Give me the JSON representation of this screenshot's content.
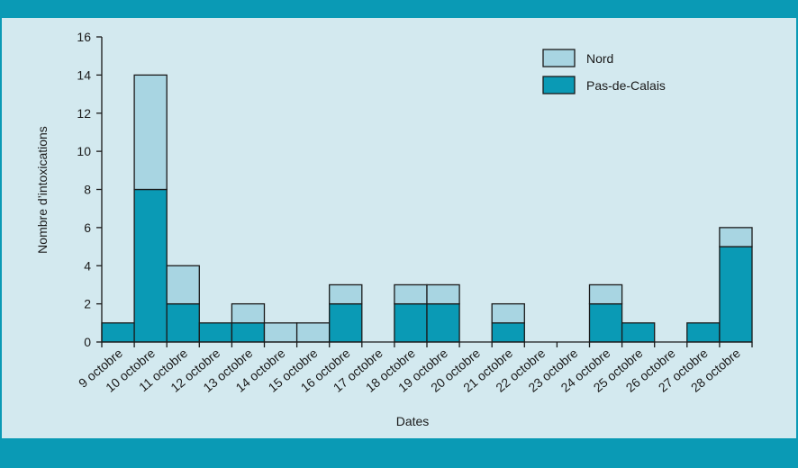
{
  "colors": {
    "frame": "#0a9ab5",
    "background": "#d3e9ef",
    "pas_de_calais": "#0a9ab5",
    "nord": "#a8d5e2",
    "stroke": "#1a1a1a"
  },
  "chart_data": {
    "type": "bar",
    "stacked": true,
    "title": "",
    "xlabel": "Dates",
    "ylabel": "Nombre d’intoxications",
    "ylim": [
      0,
      16
    ],
    "yticks": [
      0,
      2,
      4,
      6,
      8,
      10,
      12,
      14,
      16
    ],
    "legend_position": "top-right",
    "categories": [
      "9 octobre",
      "10 octobre",
      "11 octobre",
      "12 octobre",
      "13 octobre",
      "14 octobre",
      "15 octobre",
      "16 octobre",
      "17 octobre",
      "18 octobre",
      "19 octobre",
      "20 octobre",
      "21 octobre",
      "22 octobre",
      "23 octobre",
      "24 octobre",
      "25 octobre",
      "26 octobre",
      "27 octobre",
      "28 octobre"
    ],
    "series": [
      {
        "name": "Pas-de-Calais",
        "color": "#0a9ab5",
        "values": [
          1,
          8,
          2,
          1,
          1,
          0,
          0,
          2,
          0,
          2,
          2,
          0,
          1,
          0,
          0,
          2,
          1,
          0,
          1,
          5
        ]
      },
      {
        "name": "Nord",
        "color": "#a8d5e2",
        "values": [
          0,
          6,
          2,
          0,
          1,
          1,
          1,
          1,
          0,
          1,
          1,
          0,
          1,
          0,
          0,
          1,
          0,
          0,
          0,
          1
        ]
      }
    ],
    "legend": [
      {
        "name": "Nord",
        "color": "#a8d5e2"
      },
      {
        "name": "Pas-de-Calais",
        "color": "#0a9ab5"
      }
    ]
  }
}
